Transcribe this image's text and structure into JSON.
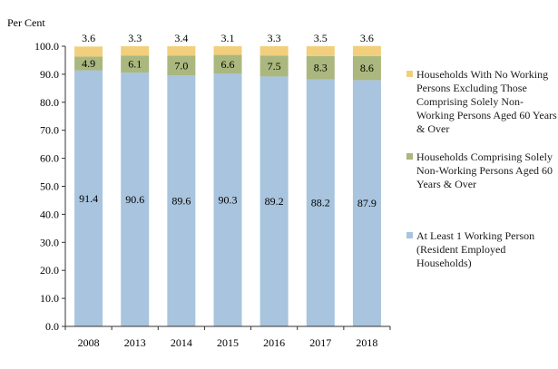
{
  "chart_data": {
    "type": "bar",
    "stacked": true,
    "ylabel": "Per Cent",
    "ylim": [
      0,
      100
    ],
    "yticks": [
      "0.0",
      "10.0",
      "20.0",
      "30.0",
      "40.0",
      "50.0",
      "60.0",
      "70.0",
      "80.0",
      "90.0",
      "100.0"
    ],
    "categories": [
      "2008",
      "2013",
      "2014",
      "2015",
      "2016",
      "2017",
      "2018"
    ],
    "series": [
      {
        "name": "At Least 1 Working Person (Resident Employed Households)",
        "color": "#a8c4de",
        "values": [
          91.4,
          90.6,
          89.6,
          90.3,
          89.2,
          88.2,
          87.9
        ]
      },
      {
        "name": "Households Comprising Solely Non-Working Persons Aged 60 Years & Over",
        "color": "#aab77e",
        "values": [
          4.9,
          6.1,
          7.0,
          6.6,
          7.5,
          8.3,
          8.6
        ]
      },
      {
        "name": "Households With No Working Persons Excluding Those Comprising Solely Non-Working Persons Aged 60 Years & Over",
        "color": "#f2cf7c",
        "values": [
          3.6,
          3.3,
          3.4,
          3.1,
          3.3,
          3.5,
          3.6
        ]
      }
    ],
    "legend": "right"
  }
}
